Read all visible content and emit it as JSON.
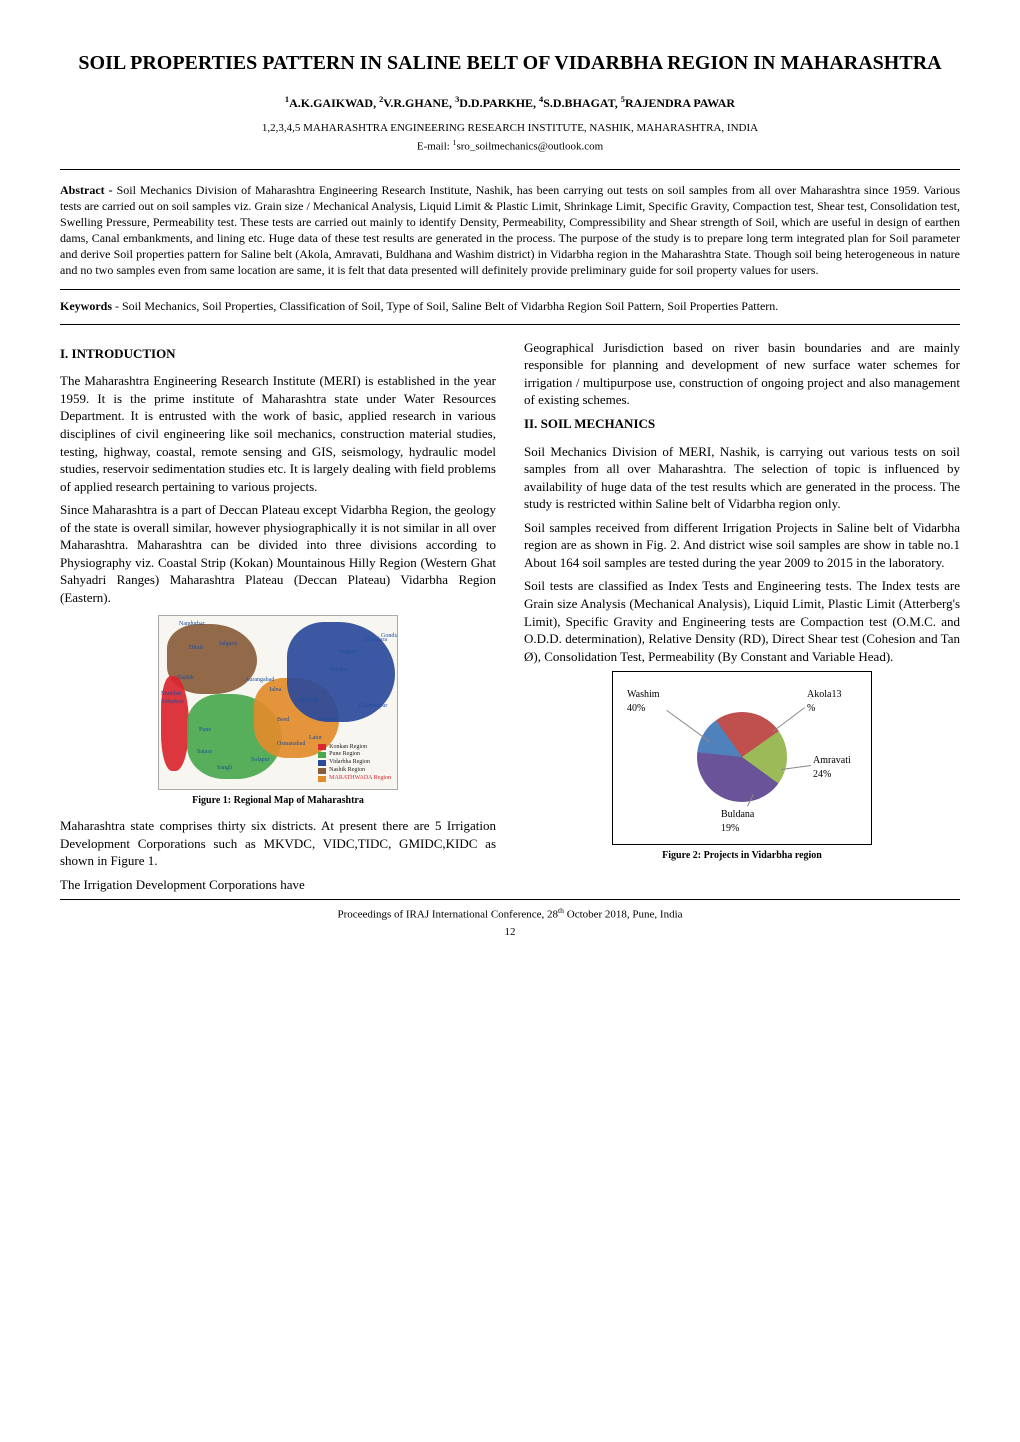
{
  "title": "SOIL PROPERTIES PATTERN IN SALINE BELT OF VIDARBHA REGION IN MAHARASHTRA",
  "authors_html": "<sup>1</sup>A.K.GAIKWAD, <sup>2</sup>V.R.GHANE, <sup>3</sup>D.D.PARKHE, <sup>4</sup>S.D.BHAGAT, <sup>5</sup>RAJENDRA PAWAR",
  "affiliation": "1,2,3,4,5 MAHARASHTRA ENGINEERING RESEARCH INSTITUTE, NASHIK, MAHARASHTRA, INDIA",
  "email_html": "E-mail: <sup>1</sup>sro_soilmechanics@outlook.com",
  "abstract": {
    "label": "Abstract - ",
    "text": "Soil Mechanics Division of Maharashtra Engineering Research Institute, Nashik, has been carrying out tests on soil samples from all over Maharashtra since 1959. Various tests are carried out on soil samples viz. Grain size / Mechanical Analysis, Liquid Limit & Plastic Limit, Shrinkage Limit, Specific Gravity, Compaction test, Shear test, Consolidation test, Swelling Pressure, Permeability test. These tests are carried out mainly to identify Density, Permeability, Compressibility and Shear strength of Soil, which are useful in design of earthen dams, Canal embankments, and lining etc. Huge data of these test results are generated in the process. The purpose of the study is to prepare long term integrated plan for Soil parameter and derive Soil properties pattern for Saline belt (Akola, Amravati, Buldhana and Washim district) in Vidarbha region in the Maharashtra State. Though soil being heterogeneous in nature and no two samples even from same location are same, it is felt that data presented will definitely provide preliminary guide for soil property values for users."
  },
  "keywords": {
    "label": "Keywords ",
    "text": "- Soil Mechanics, Soil Properties, Classification of Soil, Type of Soil, Saline Belt of Vidarbha Region Soil Pattern, Soil Properties Pattern."
  },
  "left_column": {
    "h1": "I. INTRODUCTION",
    "p1": "The Maharashtra Engineering Research Institute (MERI) is established in the year 1959. It is the prime institute of Maharashtra state under Water Resources Department. It is entrusted with the work of basic, applied research in various disciplines of civil engineering like soil mechanics, construction material studies, testing, highway, coastal, remote sensing and GIS, seismology, hydraulic model studies, reservoir sedimentation studies etc. It is largely dealing with field problems of applied research pertaining to various projects.",
    "p2": "Since Maharashtra is a part of Deccan Plateau except Vidarbha Region, the geology of the state is overall similar, however physiographically it is not similar in all over Maharashtra. Maharashtra can be divided into three divisions according to Physiography viz. Coastal Strip (Kokan) Mountainous Hilly Region (Western Ghat Sahyadri Ranges) Maharashtra Plateau (Deccan Plateau) Vidarbha Region (Eastern).",
    "fig1_caption": "Figure 1: Regional Map of Maharashtra",
    "p3": "Maharashtra state comprises thirty six districts. At present there are 5 Irrigation Development Corporations such as MKVDC, VIDC,TIDC, GMIDC,KIDC as shown in Figure 1.",
    "p4": "The Irrigation Development Corporations have"
  },
  "right_column": {
    "p1": "Geographical Jurisdiction based on river basin boundaries and are mainly responsible for planning and development of new surface water schemes for irrigation / multipurpose use, construction of ongoing project and also management of existing schemes.",
    "h2": "II. SOIL MECHANICS",
    "p2": "Soil Mechanics Division of MERI, Nashik, is carrying out various tests on soil samples from all over Maharashtra. The selection of topic is influenced by availability of huge data of the test results which are generated in the process. The study is restricted within Saline belt of Vidarbha region only.",
    "p3": "Soil samples received from different Irrigation Projects in Saline belt of Vidarbha region are as shown in Fig. 2. And district wise soil samples are show in table no.1 About 164 soil samples are tested during the year 2009 to 2015 in the laboratory.",
    "p4": "Soil tests are classified as Index Tests and Engineering tests. The Index tests are Grain size Analysis (Mechanical Analysis), Liquid Limit, Plastic Limit (Atterberg's Limit), Specific Gravity and Engineering tests are Compaction test (O.M.C. and O.D.D. determination), Relative Density (RD), Direct Shear test (Cohesion and Tan Ø), Consolidation Test, Permeability (By Constant and Variable Head).",
    "fig2_caption": "Figure 2: Projects in Vidarbha region"
  },
  "figure1_map": {
    "regions": [
      {
        "name": "Konkan Region",
        "color": "#d9262f"
      },
      {
        "name": "Pune Region",
        "color": "#4aa84e"
      },
      {
        "name": "Vidarbha Region",
        "color": "#2b4a9b"
      },
      {
        "name": "Nashik Region",
        "color": "#8a5d3b"
      },
      {
        "name": "MARATHWADA Region",
        "color": "#e28b2b"
      }
    ],
    "city_labels": [
      "Nandurbar",
      "Dhule",
      "Jalgaon",
      "Nashik",
      "Mumbai",
      "Suburban",
      "Pune",
      "Satara",
      "Sangli",
      "Solapur",
      "Osmanabad",
      "Latur",
      "Beed",
      "Nanded",
      "Hingoli",
      "Jalna",
      "Aurangabad",
      "Buldhana",
      "Washim",
      "Akola",
      "Amravati",
      "Yavatmal",
      "Wardha",
      "Nagpur",
      "Bhandara",
      "Gondia",
      "Chandrapur",
      "Gadchiroli"
    ],
    "label_color": "#1e4fa0",
    "label_fontsize": 6
  },
  "figure2_pie": {
    "type": "pie",
    "slices": [
      {
        "label": "Washim",
        "value": 40,
        "color": "#6b5399"
      },
      {
        "label": "Akola13",
        "value": 13,
        "color": "#4f81bd",
        "sub": "%"
      },
      {
        "label": "Amravati",
        "value": 24,
        "color": "#c0504d"
      },
      {
        "label": "Buldana",
        "value": 19,
        "color": "#9bbb59"
      }
    ],
    "label_fontsize": 10,
    "leader_color": "#888888",
    "background_color": "#ffffff",
    "border_color": "#000000"
  },
  "footer": "Proceedings of IRAJ International Conference, 28th October 2018, Pune, India",
  "page_number": "12"
}
